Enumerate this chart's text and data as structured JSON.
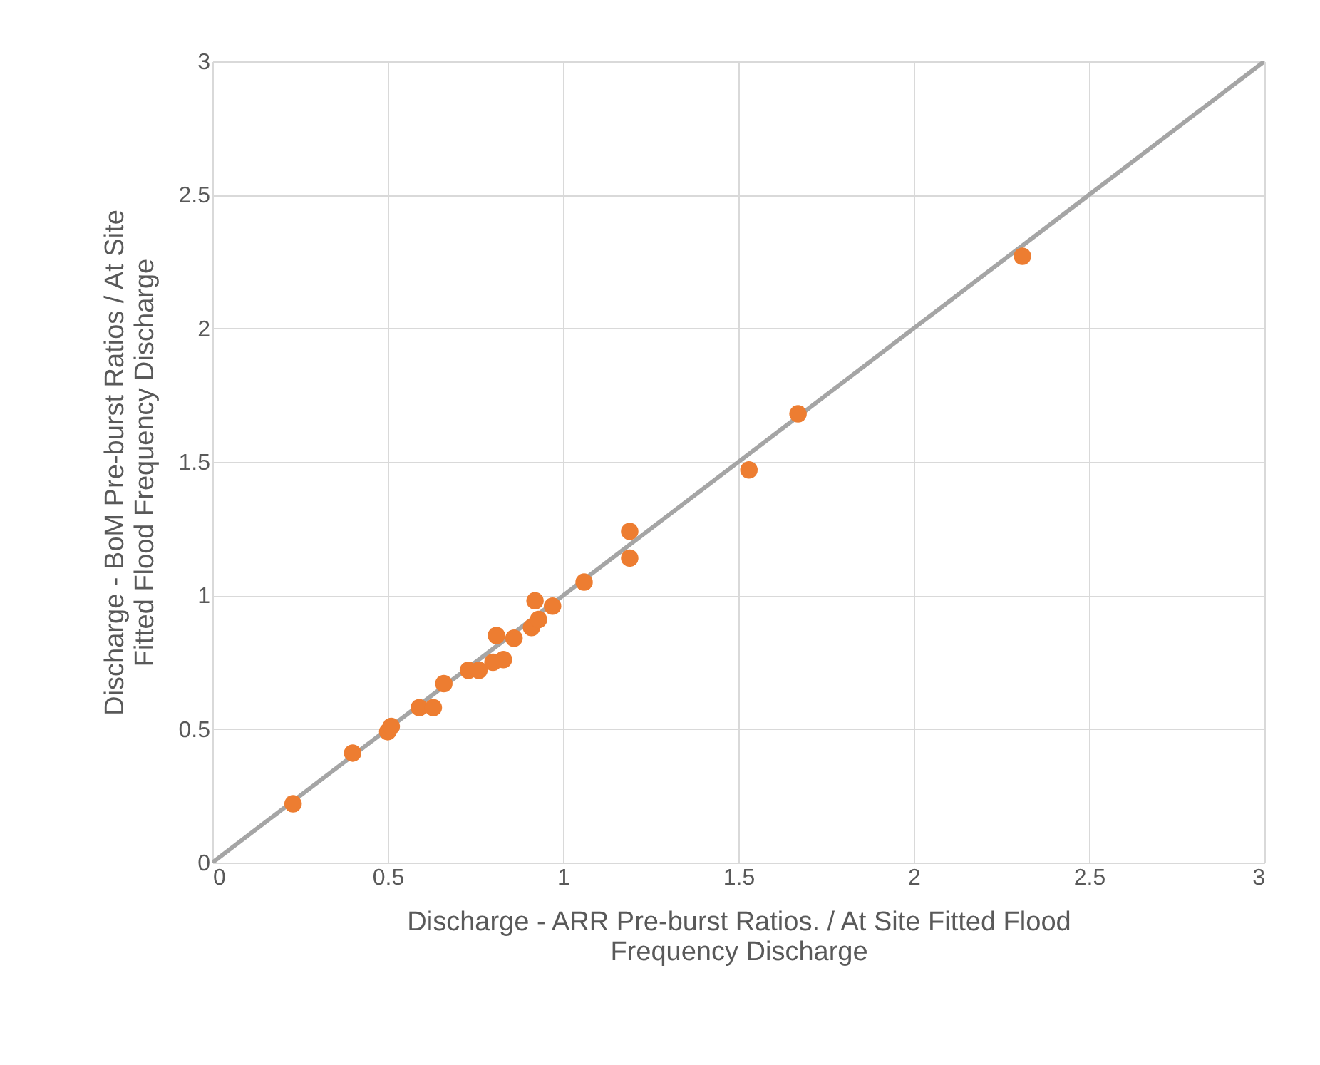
{
  "chart_data": {
    "type": "scatter",
    "xlabel": "Discharge - ARR Pre-burst Ratios. / At Site Fitted Flood\nFrequency Discharge",
    "ylabel": "Discharge - BoM Pre-burst Ratios / At Site\nFitted Flood Frequency Discharge",
    "xlim": [
      0,
      3
    ],
    "ylim": [
      0,
      3
    ],
    "xticks": [
      0,
      0.5,
      1,
      1.5,
      2,
      2.5,
      3
    ],
    "yticks": [
      0,
      0.5,
      1,
      1.5,
      2,
      2.5,
      3
    ],
    "grid": true,
    "marker": "circle",
    "series": [
      {
        "type": "line",
        "marker": "none",
        "line_style": "solid",
        "color": "#a5a5a5",
        "x": [
          0,
          3
        ],
        "values": [
          0,
          3
        ]
      },
      {
        "color": "#ed7d31",
        "x": [
          0.23,
          0.4,
          0.5,
          0.51,
          0.59,
          0.63,
          0.66,
          0.73,
          0.76,
          0.8,
          0.81,
          0.83,
          0.86,
          0.91,
          0.93,
          0.92,
          0.97,
          1.06,
          1.19,
          1.19,
          1.53,
          1.67,
          2.31
        ],
        "values": [
          0.22,
          0.41,
          0.49,
          0.51,
          0.58,
          0.58,
          0.67,
          0.72,
          0.72,
          0.75,
          0.85,
          0.76,
          0.84,
          0.88,
          0.91,
          0.98,
          0.96,
          1.05,
          1.24,
          1.14,
          1.47,
          1.68,
          2.27
        ]
      }
    ]
  }
}
